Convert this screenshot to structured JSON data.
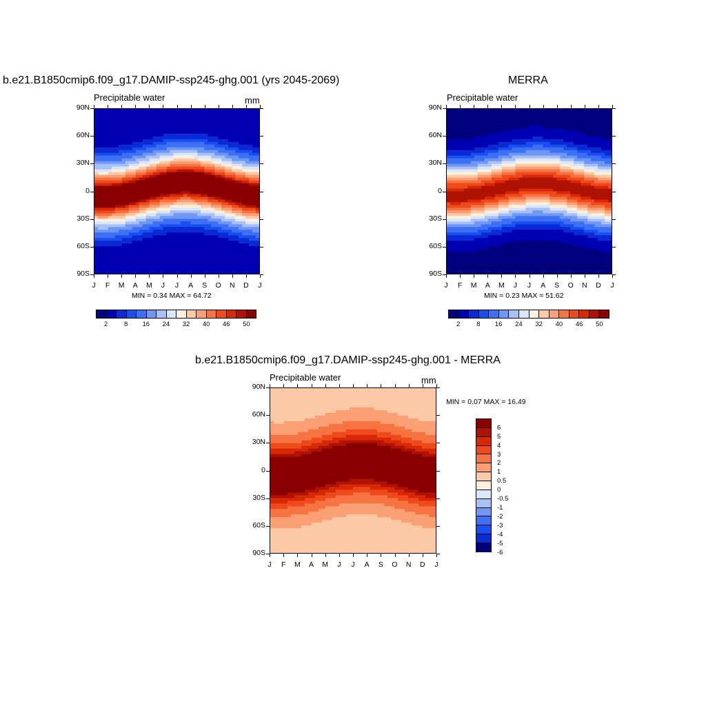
{
  "palette_full": [
    "#00007f",
    "#0000b3",
    "#0a2ad6",
    "#1a4ef0",
    "#3d70f5",
    "#6f97f5",
    "#a8c0f5",
    "#d9e6fb",
    "#fdf0df",
    "#fcc9a6",
    "#fba074",
    "#f77442",
    "#ee4a1c",
    "#d92806",
    "#b01202",
    "#8a0000"
  ],
  "palette_diff": [
    "#8a0000",
    "#b01202",
    "#d92806",
    "#ee4a1c",
    "#f77442",
    "#fba074",
    "#fcc9a6",
    "#fdf0df",
    "#d9e6fb",
    "#a8c0f5",
    "#6f97f5",
    "#3d70f5",
    "#1a4ef0",
    "#0a2ad6",
    "#00007f"
  ],
  "months": [
    "J",
    "F",
    "M",
    "A",
    "M",
    "J",
    "J",
    "A",
    "S",
    "O",
    "N",
    "D",
    "J"
  ],
  "lat_labels": [
    "90N",
    "60N",
    "30N",
    "0",
    "30S",
    "60S",
    "90S"
  ],
  "panels": {
    "model": {
      "title": "b.e21.B1850cmip6.f09_g17.DAMIP-ssp245-ghg.001 (yrs 2045-2069)",
      "left_label": "Precipitable water",
      "right_label": "mm",
      "minmax": "MIN =   0.34 MAX =  64.72"
    },
    "obs": {
      "title": "MERRA",
      "left_label": "Precipitable water",
      "minmax": "MIN =   0.23 MAX =  51.62"
    },
    "diff": {
      "title": "b.e21.B1850cmip6.f09_g17.DAMIP-ssp245-ghg.001 - MERRA",
      "left_label": "Precipitable water",
      "right_label": "mm",
      "minmax": "MIN =   0.07 MAX =  16.49"
    }
  },
  "colorbar_full_labels": [
    "2",
    "8",
    "16",
    "24",
    "32",
    "40",
    "46",
    "50"
  ],
  "colorbar_diff_labels": [
    "6",
    "5",
    "4",
    "3",
    "2",
    "1",
    "0.5",
    "0",
    "-0.5",
    "-1",
    "-2",
    "-3",
    "-4",
    "-5",
    "-6"
  ],
  "chart_data": [
    {
      "type": "heatmap",
      "title": "b.e21.B1850cmip6.f09_g17.DAMIP-ssp245-ghg.001 (yrs 2045-2069)",
      "field": "Precipitable water",
      "units": "mm",
      "x": [
        "J",
        "F",
        "M",
        "A",
        "M",
        "J",
        "J",
        "A",
        "S",
        "O",
        "N",
        "D",
        "J"
      ],
      "y": [
        "90S",
        "60S",
        "30S",
        "0",
        "30N",
        "60N",
        "90N"
      ],
      "ylim": [
        -90,
        90
      ],
      "levels": [
        2,
        4,
        6,
        8,
        12,
        16,
        20,
        24,
        28,
        32,
        36,
        40,
        44,
        46,
        48,
        50
      ],
      "min": 0.34,
      "max": 64.72,
      "equator_peak": 55,
      "polar_value": 2,
      "width_deg": 30,
      "itcz_amp_deg": 8
    },
    {
      "type": "heatmap",
      "title": "MERRA",
      "field": "Precipitable water",
      "x": [
        "J",
        "F",
        "M",
        "A",
        "M",
        "J",
        "J",
        "A",
        "S",
        "O",
        "N",
        "D",
        "J"
      ],
      "y": [
        "90S",
        "60S",
        "30S",
        "0",
        "30N",
        "60N",
        "90N"
      ],
      "ylim": [
        -90,
        90
      ],
      "levels": [
        2,
        4,
        6,
        8,
        12,
        16,
        20,
        24,
        28,
        32,
        36,
        40,
        44,
        46,
        48,
        50
      ],
      "min": 0.23,
      "max": 51.62,
      "equator_peak": 48,
      "polar_value": 1.5,
      "width_deg": 29,
      "itcz_amp_deg": 7
    },
    {
      "type": "heatmap",
      "title": "b.e21.B1850cmip6.f09_g17.DAMIP-ssp245-ghg.001 - MERRA",
      "field": "Precipitable water",
      "units": "mm",
      "x": [
        "J",
        "F",
        "M",
        "A",
        "M",
        "J",
        "J",
        "A",
        "S",
        "O",
        "N",
        "D",
        "J"
      ],
      "y": [
        "90S",
        "60S",
        "30S",
        "0",
        "30N",
        "60N",
        "90N"
      ],
      "ylim": [
        -90,
        90
      ],
      "levels": [
        -6,
        -5,
        -4,
        -3,
        -2,
        -1,
        -0.5,
        0,
        0.5,
        1,
        2,
        3,
        4,
        5,
        6
      ],
      "min": 0.07,
      "max": 16.49,
      "equator_peak": 8,
      "polar_value": 0.4,
      "width_deg": 28,
      "itcz_amp_deg": 8
    }
  ]
}
